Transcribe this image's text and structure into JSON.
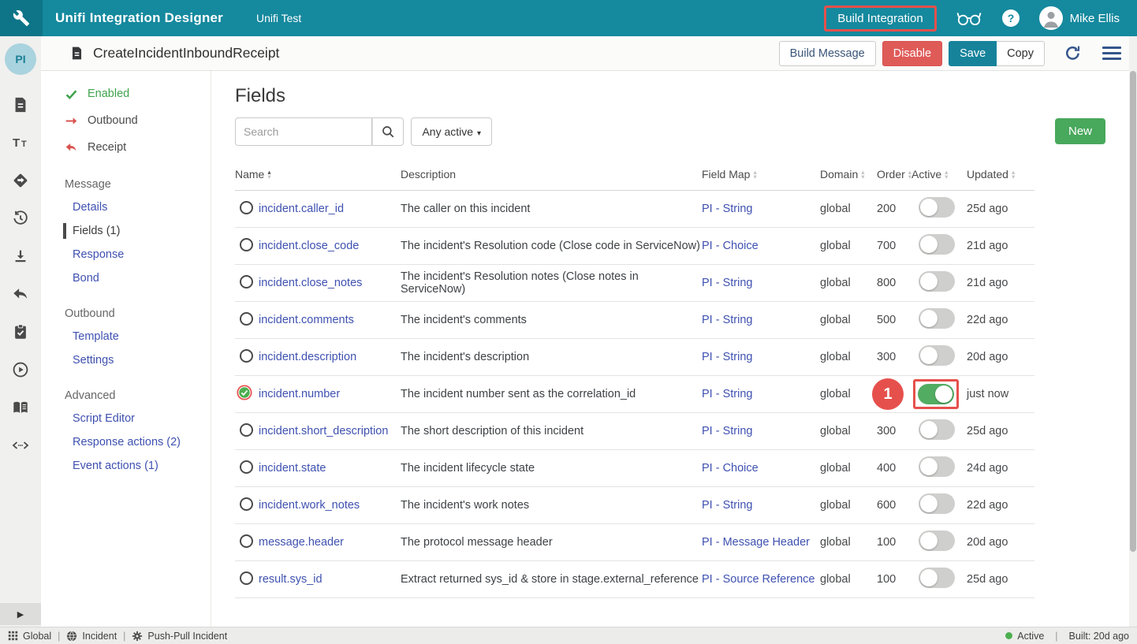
{
  "topbar": {
    "app_title": "Unifi Integration Designer",
    "workspace": "Unifi Test",
    "build_integration_label": "Build Integration",
    "user_name": "Mike Ellis"
  },
  "header": {
    "avatar_text": "PI",
    "title": "CreateIncidentInboundReceipt",
    "build_message_label": "Build Message",
    "disable_label": "Disable",
    "save_label": "Save",
    "copy_label": "Copy"
  },
  "rail": {
    "icons": [
      "file",
      "text-format",
      "send",
      "history",
      "download",
      "reply",
      "task-check",
      "play",
      "book",
      "code"
    ]
  },
  "sidebar": {
    "status_items": [
      {
        "label": "Enabled",
        "icon": "check",
        "style": "green"
      },
      {
        "label": "Outbound",
        "icon": "arrow-right",
        "style": "default"
      },
      {
        "label": "Receipt",
        "icon": "reply-red",
        "style": "default"
      }
    ],
    "sections": [
      {
        "title": "Message",
        "items": [
          {
            "label": "Details",
            "active": false
          },
          {
            "label": "Fields (1)",
            "active": true
          },
          {
            "label": "Response",
            "active": false
          },
          {
            "label": "Bond",
            "active": false
          }
        ]
      },
      {
        "title": "Outbound",
        "items": [
          {
            "label": "Template",
            "active": false
          },
          {
            "label": "Settings",
            "active": false
          }
        ]
      },
      {
        "title": "Advanced",
        "items": [
          {
            "label": "Script Editor",
            "active": false
          },
          {
            "label": "Response actions (2)",
            "active": false
          },
          {
            "label": "Event actions (1)",
            "active": false
          }
        ]
      }
    ]
  },
  "main": {
    "title": "Fields",
    "search_placeholder": "Search",
    "filter_label": "Any active",
    "new_button_label": "New",
    "table": {
      "headers": [
        {
          "label": "Name",
          "sort": "asc"
        },
        {
          "label": "Description",
          "sort": "none"
        },
        {
          "label": "Field Map",
          "sort": "both"
        },
        {
          "label": "Domain",
          "sort": "both"
        },
        {
          "label": "Order",
          "sort": "both"
        },
        {
          "label": "Active",
          "sort": "both"
        },
        {
          "label": "Updated",
          "sort": "both"
        }
      ],
      "rows": [
        {
          "name": "incident.caller_id",
          "description": "The caller on this incident",
          "field_map": "PI - String",
          "domain": "global",
          "order": "200",
          "active": false,
          "updated": "25d ago",
          "status_icon": "circle",
          "annotated": false
        },
        {
          "name": "incident.close_code",
          "description": "The incident's Resolution code (Close code in ServiceNow)",
          "field_map": "PI - Choice",
          "domain": "global",
          "order": "700",
          "active": false,
          "updated": "21d ago",
          "status_icon": "circle",
          "annotated": false
        },
        {
          "name": "incident.close_notes",
          "description": "The incident's Resolution notes (Close notes in ServiceNow)",
          "field_map": "PI - String",
          "domain": "global",
          "order": "800",
          "active": false,
          "updated": "21d ago",
          "status_icon": "circle",
          "annotated": false
        },
        {
          "name": "incident.comments",
          "description": "The incident's comments",
          "field_map": "PI - String",
          "domain": "global",
          "order": "500",
          "active": false,
          "updated": "22d ago",
          "status_icon": "circle",
          "annotated": false
        },
        {
          "name": "incident.description",
          "description": "The incident's description",
          "field_map": "PI - String",
          "domain": "global",
          "order": "300",
          "active": false,
          "updated": "20d ago",
          "status_icon": "circle",
          "annotated": false
        },
        {
          "name": "incident.number",
          "description": "The incident number sent as the correlation_id",
          "field_map": "PI - String",
          "domain": "global",
          "order": "",
          "active": true,
          "updated": "just now",
          "status_icon": "check-circle",
          "annotated": true
        },
        {
          "name": "incident.short_description",
          "description": "The short description of this incident",
          "field_map": "PI - String",
          "domain": "global",
          "order": "300",
          "active": false,
          "updated": "25d ago",
          "status_icon": "circle",
          "annotated": false
        },
        {
          "name": "incident.state",
          "description": "The incident lifecycle state",
          "field_map": "PI - Choice",
          "domain": "global",
          "order": "400",
          "active": false,
          "updated": "24d ago",
          "status_icon": "circle",
          "annotated": false
        },
        {
          "name": "incident.work_notes",
          "description": "The incident's work notes",
          "field_map": "PI - String",
          "domain": "global",
          "order": "600",
          "active": false,
          "updated": "22d ago",
          "status_icon": "circle",
          "annotated": false
        },
        {
          "name": "message.header",
          "description": "The protocol message header",
          "field_map": "PI - Message Header",
          "domain": "global",
          "order": "100",
          "active": false,
          "updated": "20d ago",
          "status_icon": "circle",
          "annotated": false
        },
        {
          "name": "result.sys_id",
          "description": "Extract returned sys_id & store in stage.external_reference",
          "field_map": "PI - Source Reference",
          "domain": "global",
          "order": "100",
          "active": false,
          "updated": "25d ago",
          "status_icon": "circle",
          "annotated": false
        }
      ]
    }
  },
  "annotations": {
    "step_label": "1"
  },
  "statusbar": {
    "separator": "|",
    "scopes": [
      {
        "icon": "grid",
        "label": "Global"
      },
      {
        "icon": "globe",
        "label": "Incident"
      },
      {
        "icon": "gear",
        "label": "Push-Pull Incident"
      }
    ],
    "status_label": "Active",
    "built_label": "Built: 20d ago"
  },
  "colors": {
    "topbar_teal": "#15899E",
    "annotation_red": "#E6504C",
    "toggle_green": "#52AC62",
    "link_blue": "#3F51B0",
    "new_green": "#48A85C",
    "enabled_green": "#3FA34D"
  }
}
